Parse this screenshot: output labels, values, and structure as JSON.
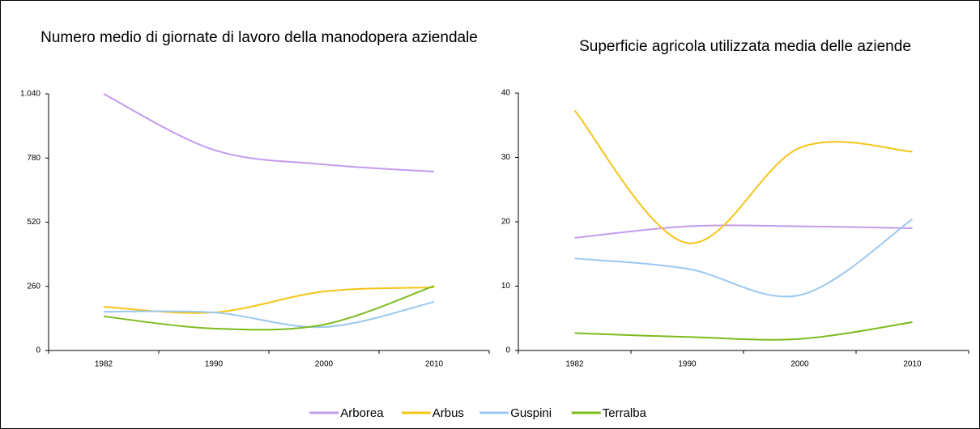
{
  "chart_data": [
    {
      "type": "line",
      "title": "Numero medio di giornate di lavoro della manodopera aziendale",
      "categories": [
        "1982",
        "1990",
        "2000",
        "2010"
      ],
      "series": [
        {
          "name": "Arborea",
          "color": "#c39bef",
          "values": [
            1040,
            813,
            754,
            725
          ]
        },
        {
          "name": "Arbus",
          "color": "#f5c518",
          "values": [
            177,
            154,
            239,
            256
          ]
        },
        {
          "name": "Guspini",
          "color": "#9cc8ef",
          "values": [
            157,
            154,
            95,
            197
          ]
        },
        {
          "name": "Terralba",
          "color": "#7fba1e",
          "values": [
            138,
            89,
            105,
            262
          ]
        }
      ],
      "ylim": [
        0,
        1040
      ],
      "yticks": [
        0,
        260,
        520,
        780,
        {
          "value": 1040,
          "label": "1.040"
        }
      ]
    },
    {
      "type": "line",
      "title": "Superficie agricola utilizzata media delle aziende",
      "categories": [
        "1982",
        "1990",
        "2000",
        "2010"
      ],
      "series": [
        {
          "name": "Arborea",
          "color": "#c39bef",
          "values": [
            17.5,
            19.3,
            19.3,
            19.0
          ]
        },
        {
          "name": "Arbus",
          "color": "#f5c518",
          "values": [
            37.3,
            16.7,
            31.5,
            30.9
          ]
        },
        {
          "name": "Guspini",
          "color": "#9cc8ef",
          "values": [
            14.3,
            12.7,
            8.6,
            20.4
          ]
        },
        {
          "name": "Terralba",
          "color": "#7fba1e",
          "values": [
            2.7,
            2.1,
            1.8,
            4.4
          ]
        }
      ],
      "ylim": [
        0,
        40
      ],
      "yticks": [
        0,
        10,
        20,
        30,
        40
      ]
    }
  ]
}
